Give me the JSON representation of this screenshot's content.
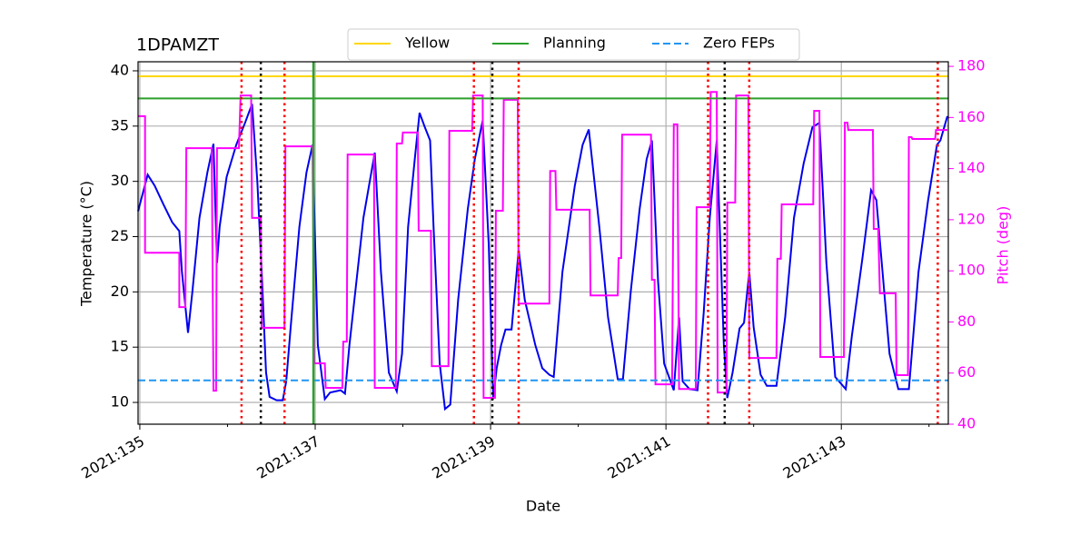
{
  "chart_data": {
    "type": "line",
    "title": "1DPAMZT",
    "xlabel": "Date",
    "ylabel": "Temperature (°C)",
    "y2label": "Pitch (deg)",
    "y2color": "#ff00ff",
    "grid": true,
    "legend": "upper center",
    "xlim": [
      134.98,
      144.22
    ],
    "xticks": [
      {
        "value": 135,
        "label": "2021:135"
      },
      {
        "value": 137,
        "label": "2021:137"
      },
      {
        "value": 139,
        "label": "2021:139"
      },
      {
        "value": 141,
        "label": "2021:141"
      },
      {
        "value": 143,
        "label": "2021:143"
      }
    ],
    "xminorticks": [
      136,
      138,
      140,
      142,
      144
    ],
    "ylim": [
      8.03,
      40.82
    ],
    "yticks": [
      10,
      15,
      20,
      25,
      30,
      35,
      40
    ],
    "y2lim": [
      40,
      181.8
    ],
    "y2ticks": [
      40,
      60,
      80,
      100,
      120,
      140,
      160,
      180
    ],
    "hlines": [
      {
        "name": "Yellow",
        "color": "#ffd700",
        "style": "solid",
        "value": 39.5
      },
      {
        "name": "Planning",
        "color": "#2ca02c",
        "style": "solid",
        "value": 37.5
      },
      {
        "name": "Zero FEPs",
        "color": "#2196f3",
        "style": "dashed",
        "value": 12
      }
    ],
    "vlines": [
      {
        "color": "#ff0000",
        "style": "dotted",
        "x": [
          136.16,
          136.65,
          138.81,
          139.32,
          141.48,
          141.95,
          144.1
        ]
      },
      {
        "color": "#000000",
        "style": "dotted",
        "x": [
          136.38,
          139.02,
          141.67
        ]
      },
      {
        "color": "#2ca02c",
        "style": "solid",
        "x": [
          136.98
        ]
      }
    ],
    "series": [
      {
        "color": "#0000ee",
        "axis": "y",
        "x": [
          134.98,
          135.09,
          135.17,
          135.27,
          135.37,
          135.45,
          135.48,
          135.55,
          135.6,
          135.68,
          135.77,
          135.84,
          135.88,
          135.91,
          135.99,
          136.1,
          136.2,
          136.28,
          136.34,
          136.39,
          136.44,
          136.48,
          136.56,
          136.63,
          136.67,
          136.72,
          136.82,
          136.9,
          136.97,
          137.03,
          137.11,
          137.17,
          137.29,
          137.34,
          137.39,
          137.55,
          137.68,
          137.75,
          137.84,
          137.93,
          137.99,
          138.06,
          138.14,
          138.19,
          138.25,
          138.31,
          138.35,
          138.42,
          138.48,
          138.54,
          138.63,
          138.74,
          138.82,
          138.91,
          138.98,
          139.03,
          139.07,
          139.12,
          139.17,
          139.24,
          139.32,
          139.39,
          139.51,
          139.59,
          139.67,
          139.72,
          139.82,
          139.96,
          140.05,
          140.12,
          140.24,
          140.34,
          140.45,
          140.51,
          140.6,
          140.7,
          140.78,
          140.84,
          140.91,
          140.98,
          141.09,
          141.15,
          141.19,
          141.27,
          141.36,
          141.43,
          141.5,
          141.58,
          141.66,
          141.7,
          141.76,
          141.84,
          141.89,
          141.95,
          142.0,
          142.08,
          142.15,
          142.26,
          142.36,
          142.46,
          142.57,
          142.67,
          142.75,
          142.83,
          142.93,
          143.05,
          143.12,
          143.24,
          143.34,
          143.4,
          143.47,
          143.55,
          143.65,
          143.77,
          143.88,
          143.99,
          144.09,
          144.13,
          144.21
        ],
        "values": [
          27.3,
          30.6,
          29.6,
          27.9,
          26.3,
          25.5,
          21.8,
          16.3,
          20.1,
          26.7,
          30.8,
          33.4,
          22.6,
          25.9,
          30.4,
          33.3,
          35.3,
          37.0,
          30.0,
          21.8,
          12.7,
          10.5,
          10.2,
          10.2,
          11.9,
          16.8,
          25.9,
          30.8,
          33.3,
          15.2,
          10.3,
          10.9,
          11.1,
          10.8,
          15.2,
          26.7,
          32.6,
          21.8,
          12.7,
          11.0,
          14.4,
          25.9,
          32.4,
          36.2,
          34.9,
          33.7,
          25.9,
          13.5,
          9.4,
          9.8,
          19.3,
          27.5,
          32.0,
          35.5,
          24.2,
          10.3,
          13.1,
          15.2,
          16.6,
          16.6,
          23.8,
          19.3,
          15.2,
          13.1,
          12.5,
          12.3,
          21.8,
          29.6,
          33.3,
          34.7,
          25.9,
          17.7,
          12.1,
          12.1,
          20.1,
          27.5,
          32.0,
          33.7,
          20.9,
          13.5,
          11.1,
          17.7,
          11.9,
          11.2,
          11.1,
          18.1,
          26.7,
          33.7,
          15.2,
          10.4,
          12.7,
          16.7,
          17.2,
          21.8,
          16.8,
          12.5,
          11.5,
          11.5,
          17.7,
          26.7,
          31.6,
          34.9,
          35.3,
          22.6,
          12.3,
          11.2,
          16.0,
          23.0,
          29.2,
          28.3,
          21.8,
          14.4,
          11.2,
          11.2,
          21.8,
          28.3,
          33.3,
          33.7,
          35.9
        ]
      },
      {
        "color": "#ff00ff",
        "axis": "y2",
        "x": [
          134.98,
          135.06,
          135.06,
          135.45,
          135.45,
          135.52,
          135.53,
          135.82,
          135.84,
          135.87,
          135.88,
          136.13,
          136.15,
          136.27,
          136.28,
          136.38,
          136.39,
          136.65,
          136.66,
          136.97,
          136.99,
          137.11,
          137.12,
          137.31,
          137.32,
          137.36,
          137.37,
          137.67,
          137.68,
          137.92,
          137.93,
          137.99,
          138.0,
          138.17,
          138.18,
          138.32,
          138.33,
          138.52,
          138.53,
          138.79,
          138.8,
          138.91,
          138.92,
          139.05,
          139.06,
          139.14,
          139.15,
          139.31,
          139.32,
          139.67,
          139.68,
          139.74,
          139.75,
          140.13,
          140.14,
          140.45,
          140.46,
          140.49,
          140.5,
          140.83,
          140.84,
          140.87,
          140.88,
          141.07,
          141.09,
          141.13,
          141.15,
          141.34,
          141.35,
          141.5,
          141.51,
          141.58,
          141.59,
          141.69,
          141.7,
          141.79,
          141.8,
          141.94,
          141.95,
          142.26,
          142.27,
          142.31,
          142.32,
          142.68,
          142.69,
          142.75,
          142.76,
          143.03,
          143.04,
          143.07,
          143.08,
          143.36,
          143.37,
          143.42,
          143.44,
          143.62,
          143.63,
          143.76,
          143.77,
          143.8,
          143.81,
          144.07,
          144.08,
          144.21
        ],
        "values": [
          160.5,
          160.5,
          107.1,
          107.1,
          85.8,
          85.8,
          148,
          148,
          53.1,
          53.1,
          148,
          148,
          168.6,
          168.6,
          120.7,
          120.7,
          77.7,
          77.7,
          148.7,
          148.7,
          63.8,
          63.8,
          54.2,
          54.2,
          72.3,
          72.3,
          145.5,
          145.5,
          54.2,
          54.2,
          149.8,
          149.8,
          154.1,
          154.1,
          115.7,
          115.7,
          62.7,
          62.7,
          154.8,
          154.8,
          168.6,
          168.6,
          50.3,
          50.3,
          123.5,
          123.5,
          166.9,
          166.9,
          87.2,
          87.2,
          139.1,
          139.1,
          123.9,
          123.9,
          90.4,
          90.4,
          105.0,
          105.0,
          153.3,
          153.3,
          96.5,
          96.5,
          55.6,
          55.6,
          157.3,
          157.3,
          53.8,
          53.8,
          124.9,
          124.9,
          170.0,
          170.0,
          52.4,
          52.4,
          126.7,
          126.7,
          168.6,
          168.6,
          65.9,
          65.9,
          104.7,
          104.7,
          126.0,
          126.0,
          162.6,
          162.6,
          66.3,
          66.3,
          158.0,
          158.0,
          155.1,
          155.1,
          116.4,
          116.4,
          91.2,
          91.2,
          59.2,
          59.2,
          152.3,
          152.3,
          151.6,
          151.6,
          155.1,
          155.1
        ]
      }
    ]
  }
}
